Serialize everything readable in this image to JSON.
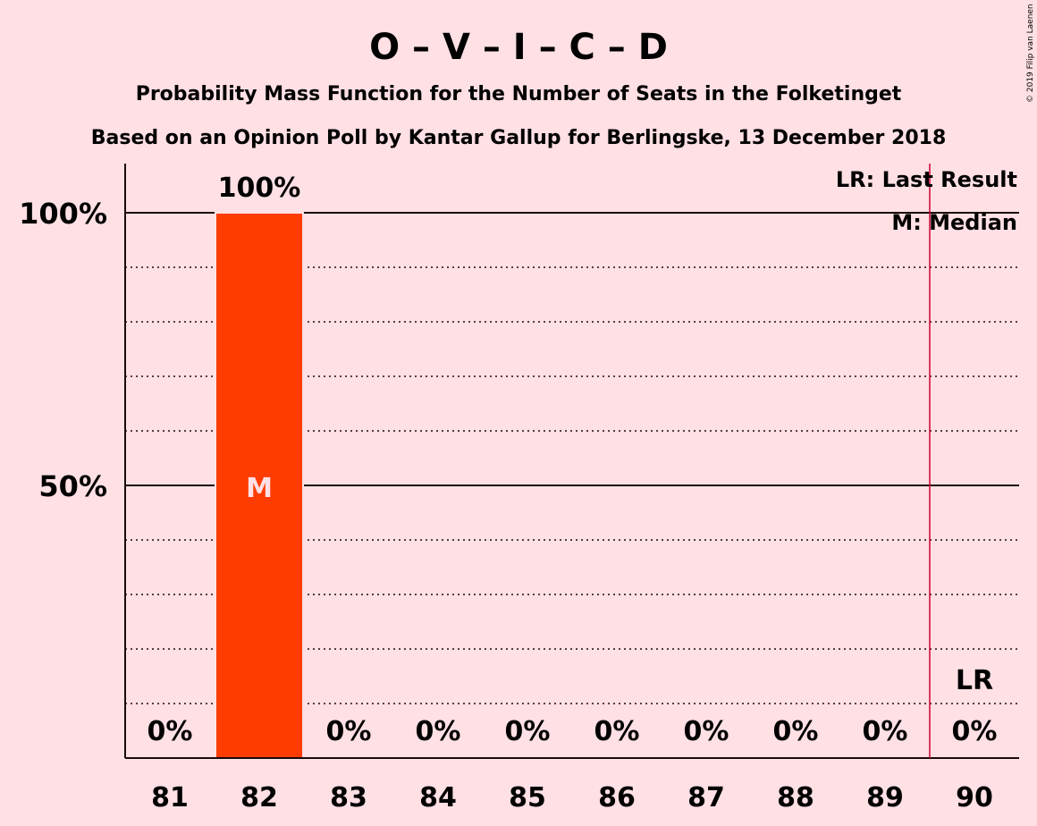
{
  "chart_data": {
    "type": "bar",
    "title": "O – V – I – C – D",
    "subtitle": "Probability Mass Function for the Number of Seats in the Folketinget",
    "subtitle2": "Based on an Opinion Poll by Kantar Gallup for Berlingske, 13 December 2018",
    "credit": "© 2019 Filip van Laenen",
    "categories": [
      "81",
      "82",
      "83",
      "84",
      "85",
      "86",
      "87",
      "88",
      "89",
      "90"
    ],
    "values": [
      0,
      100,
      0,
      0,
      0,
      0,
      0,
      0,
      0,
      0
    ],
    "value_labels": [
      "0%",
      "100%",
      "0%",
      "0%",
      "0%",
      "0%",
      "0%",
      "0%",
      "0%",
      "0%"
    ],
    "ylim": [
      0,
      110
    ],
    "yticks": [
      50,
      100
    ],
    "ytick_labels": [
      "50%",
      "100%"
    ],
    "minor_gridlines": [
      10,
      20,
      30,
      40,
      60,
      70,
      80,
      90
    ],
    "median": "82",
    "median_label": "M",
    "last_result": "90",
    "last_result_label": "LR",
    "legend": [
      "LR: Last Result",
      "M: Median"
    ],
    "legend_position": "top-right",
    "colors": {
      "bar": "#ff3c00",
      "last_result_line": "#cc0033",
      "background": "#ffe0e4",
      "text": "#1a0a0a"
    }
  }
}
